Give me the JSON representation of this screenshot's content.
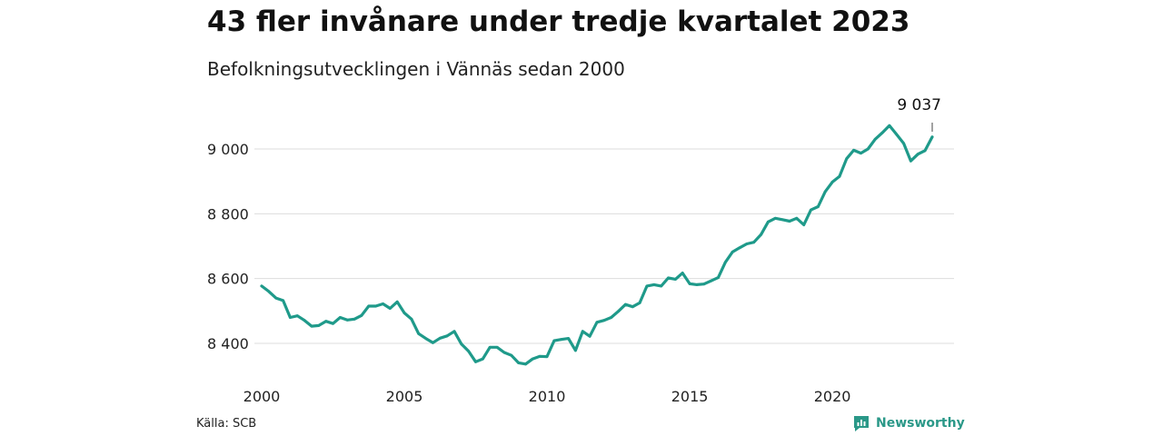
{
  "header": {
    "title": "43 fler invånare under tredje kvartalet 2023",
    "subtitle": "Befolkningsutvecklingen i Vännäs sedan 2000"
  },
  "footer": {
    "source": "Källa: SCB",
    "brand": "Newsworthy",
    "brand_icon": "newsworthy-logo-icon"
  },
  "colors": {
    "line": "#1f9a8a",
    "grid": "#dddddd",
    "brand": "#2a9888"
  },
  "chart_data": {
    "type": "line",
    "title": "43 fler invånare under tredje kvartalet 2023",
    "subtitle": "Befolkningsutvecklingen i Vännäs sedan 2000",
    "xlabel": "",
    "ylabel": "",
    "x_tick_labels": [
      "2000",
      "2005",
      "2010",
      "2015",
      "2020"
    ],
    "y_ticks": [
      8400,
      8600,
      8800,
      9000
    ],
    "y_tick_labels": [
      "8 400",
      "8 600",
      "8 800",
      "9 000"
    ],
    "ylim": [
      8320,
      9080
    ],
    "xlim": [
      "2000-Q1",
      "2023-Q3"
    ],
    "grid": true,
    "annotation": {
      "x": "2023-Q3",
      "value": 9037,
      "label": "9 037"
    },
    "x": [
      "2000-Q1",
      "2000-Q2",
      "2000-Q3",
      "2000-Q4",
      "2001-Q1",
      "2001-Q2",
      "2001-Q3",
      "2001-Q4",
      "2002-Q1",
      "2002-Q2",
      "2002-Q3",
      "2002-Q4",
      "2003-Q1",
      "2003-Q2",
      "2003-Q3",
      "2003-Q4",
      "2004-Q1",
      "2004-Q2",
      "2004-Q3",
      "2004-Q4",
      "2005-Q1",
      "2005-Q2",
      "2005-Q3",
      "2005-Q4",
      "2006-Q1",
      "2006-Q2",
      "2006-Q3",
      "2006-Q4",
      "2007-Q1",
      "2007-Q2",
      "2007-Q3",
      "2007-Q4",
      "2008-Q1",
      "2008-Q2",
      "2008-Q3",
      "2008-Q4",
      "2009-Q1",
      "2009-Q2",
      "2009-Q3",
      "2009-Q4",
      "2010-Q1",
      "2010-Q2",
      "2010-Q3",
      "2010-Q4",
      "2011-Q1",
      "2011-Q2",
      "2011-Q3",
      "2011-Q4",
      "2012-Q1",
      "2012-Q2",
      "2012-Q3",
      "2012-Q4",
      "2013-Q1",
      "2013-Q2",
      "2013-Q3",
      "2013-Q4",
      "2014-Q1",
      "2014-Q2",
      "2014-Q3",
      "2014-Q4",
      "2015-Q1",
      "2015-Q2",
      "2015-Q3",
      "2015-Q4",
      "2016-Q1",
      "2016-Q2",
      "2016-Q3",
      "2016-Q4",
      "2017-Q1",
      "2017-Q2",
      "2017-Q3",
      "2017-Q4",
      "2018-Q1",
      "2018-Q2",
      "2018-Q3",
      "2018-Q4",
      "2019-Q1",
      "2019-Q2",
      "2019-Q3",
      "2019-Q4",
      "2020-Q1",
      "2020-Q2",
      "2020-Q3",
      "2020-Q4",
      "2021-Q1",
      "2021-Q2",
      "2021-Q3",
      "2021-Q4",
      "2022-Q1",
      "2022-Q2",
      "2022-Q3",
      "2022-Q4",
      "2023-Q1",
      "2023-Q2",
      "2023-Q3"
    ],
    "series": [
      {
        "values": [
          8577,
          8560,
          8540,
          8532,
          8480,
          8485,
          8471,
          8453,
          8455,
          8468,
          8461,
          8480,
          8472,
          8475,
          8486,
          8515,
          8515,
          8522,
          8508,
          8528,
          8494,
          8475,
          8430,
          8415,
          8402,
          8416,
          8423,
          8437,
          8398,
          8376,
          8343,
          8352,
          8388,
          8388,
          8372,
          8363,
          8340,
          8336,
          8352,
          8360,
          8359,
          8408,
          8412,
          8415,
          8378,
          8437,
          8422,
          8465,
          8471,
          8480,
          8499,
          8520,
          8513,
          8525,
          8577,
          8581,
          8577,
          8602,
          8598,
          8617,
          8584,
          8581,
          8583,
          8593,
          8603,
          8650,
          8682,
          8695,
          8707,
          8712,
          8736,
          8775,
          8786,
          8782,
          8777,
          8786,
          8766,
          8812,
          8822,
          8868,
          8898,
          8915,
          8970,
          8996,
          8987,
          9000,
          9030,
          9050,
          9072,
          9045,
          9017,
          8963,
          8984,
          8995,
          9037
        ]
      }
    ]
  }
}
